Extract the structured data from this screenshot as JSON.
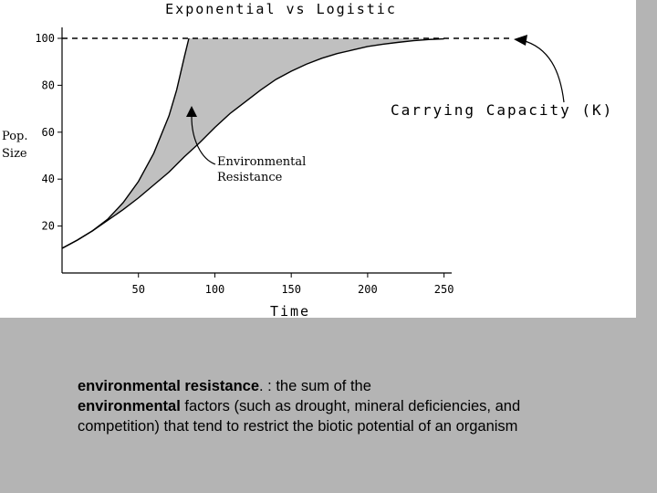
{
  "chart_data": {
    "type": "line",
    "title": "Exponential vs Logistic",
    "xlabel": "Time",
    "ylabel_line1": "Pop.",
    "ylabel_line2": "Size",
    "xlim": [
      0,
      255
    ],
    "ylim": [
      0,
      100
    ],
    "x_ticks": [
      50,
      100,
      150,
      200,
      250
    ],
    "y_ticks": [
      20,
      40,
      60,
      80,
      100
    ],
    "grid": false,
    "series": [
      {
        "name": "",
        "x": [
          0,
          10,
          20,
          30,
          40,
          50,
          60,
          70,
          75,
          80,
          83
        ],
        "y": [
          10.5,
          14,
          18,
          23,
          30,
          39,
          51,
          67,
          78,
          92,
          100
        ]
      },
      {
        "name": "",
        "x": [
          0,
          10,
          20,
          30,
          40,
          50,
          60,
          70,
          80,
          90,
          100,
          110,
          120,
          130,
          140,
          150,
          160,
          170,
          180,
          190,
          200,
          210,
          220,
          230,
          240,
          250
        ],
        "y": [
          10.5,
          14,
          18,
          22.5,
          27,
          32,
          37.5,
          43,
          49.5,
          55.5,
          62,
          68,
          73,
          78,
          82.5,
          86,
          89,
          91.5,
          93.5,
          95,
          96.5,
          97.5,
          98.3,
          99,
          99.5,
          99.8
        ]
      }
    ],
    "shaded_region_label": "",
    "carrying_capacity": 100,
    "annotations": [
      {
        "text": "Carrying Capacity (K)"
      },
      {
        "text_line1": "Environmental",
        "text_line2": "Resistance"
      }
    ]
  },
  "definition": {
    "term": "environmental resistance",
    "after_term": ". : the sum of the",
    "term2": "environmental",
    "body": " factors (such as drought, mineral deficiencies, and competition) that tend to restrict the biotic potential of an organism"
  },
  "colors": {
    "background": "#b4b4b4",
    "panel": "#ffffff",
    "shading": "#c0c0c0",
    "ink": "#000000"
  }
}
